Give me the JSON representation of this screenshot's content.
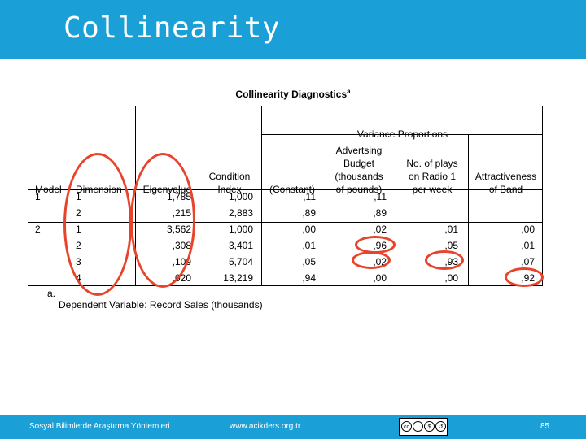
{
  "header": {
    "title": "Collinearity"
  },
  "table": {
    "caption": "Collinearity Diagnostics",
    "caption_sup": "a",
    "group_header": "Variance Proportions",
    "columns": {
      "model": "Model",
      "dimension": "Dimension",
      "eigenvalue": "Eigenvalue",
      "condition_index_l1": "Condition",
      "condition_index_l2": "Index",
      "constant": "(Constant)",
      "adv_l1": "Advertsing",
      "adv_l2": "Budget",
      "adv_l3": "(thousands",
      "adv_l4": "of pounds)",
      "plays_l1": "No. of plays",
      "plays_l2": "on Radio 1",
      "plays_l3": "per week",
      "attr_l1": "Attractiveness",
      "attr_l2": "of Band"
    },
    "rows": [
      {
        "model": "1",
        "dimension": "1",
        "eigenvalue": "1,785",
        "condition_index": "1,000",
        "constant": ",11",
        "adv": ",11",
        "plays": "",
        "attr": ""
      },
      {
        "model": "",
        "dimension": "2",
        "eigenvalue": ",215",
        "condition_index": "2,883",
        "constant": ",89",
        "adv": ",89",
        "plays": "",
        "attr": ""
      },
      {
        "model": "2",
        "dimension": "1",
        "eigenvalue": "3,562",
        "condition_index": "1,000",
        "constant": ",00",
        "adv": ",02",
        "plays": ",01",
        "attr": ",00"
      },
      {
        "model": "",
        "dimension": "2",
        "eigenvalue": ",308",
        "condition_index": "3,401",
        "constant": ",01",
        "adv": ",96",
        "plays": ",05",
        "attr": ",01"
      },
      {
        "model": "",
        "dimension": "3",
        "eigenvalue": ",109",
        "condition_index": "5,704",
        "constant": ",05",
        "adv": ",02",
        "plays": ",93",
        "attr": ",07"
      },
      {
        "model": "",
        "dimension": "4",
        "eigenvalue": ",020",
        "condition_index": "13,219",
        "constant": ",94",
        "adv": ",00",
        "plays": ",00",
        "attr": ",92"
      }
    ],
    "footnote_marker": "a.",
    "footnote": "Dependent Variable: Record Sales (thousands)"
  },
  "highlight_color": "#e8442b",
  "footer": {
    "left": "Sosyal Bilimlerde Araştırma Yöntemleri",
    "url": "www.acikders.org.tr",
    "page": "85",
    "license_icons": [
      "cc-icon",
      "by-icon",
      "nc-icon",
      "sa-icon"
    ]
  },
  "colors": {
    "brand": "#1a9fd6"
  }
}
